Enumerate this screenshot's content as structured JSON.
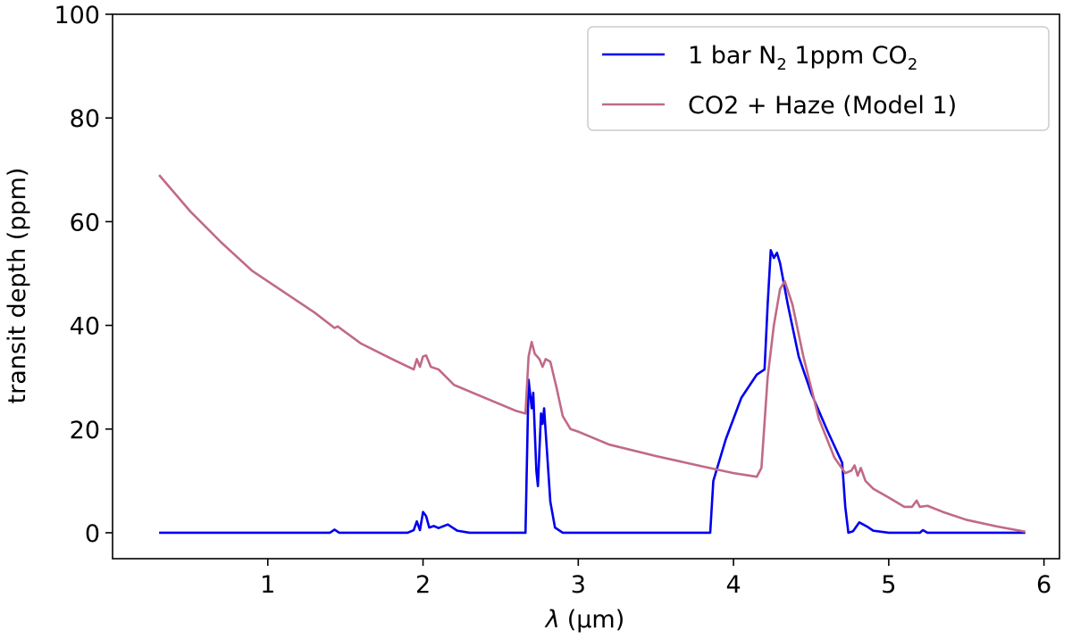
{
  "chart_data": {
    "type": "line",
    "xlabel_symbol": "λ",
    "xlabel_unit": "(μm)",
    "ylabel": "transit depth (ppm)",
    "xlim": [
      0.0,
      6.1
    ],
    "ylim": [
      -5,
      100
    ],
    "x_ticks": [
      1,
      2,
      3,
      4,
      5,
      6
    ],
    "y_ticks": [
      0,
      20,
      40,
      60,
      80,
      100
    ],
    "legend_position": "top-right",
    "series": [
      {
        "name_parts": [
          "1 bar N",
          "2",
          " 1ppm CO",
          "2"
        ],
        "color": "#0000ee",
        "points": [
          [
            0.3,
            0
          ],
          [
            1.4,
            0
          ],
          [
            1.43,
            0.6
          ],
          [
            1.46,
            0
          ],
          [
            1.9,
            0
          ],
          [
            1.94,
            0.5
          ],
          [
            1.96,
            2.2
          ],
          [
            1.98,
            0.5
          ],
          [
            2.0,
            4.0
          ],
          [
            2.02,
            3.2
          ],
          [
            2.04,
            1.0
          ],
          [
            2.07,
            1.3
          ],
          [
            2.1,
            0.9
          ],
          [
            2.16,
            1.6
          ],
          [
            2.22,
            0.4
          ],
          [
            2.3,
            0
          ],
          [
            2.66,
            0
          ],
          [
            2.68,
            29.5
          ],
          [
            2.7,
            24.0
          ],
          [
            2.71,
            27.0
          ],
          [
            2.73,
            12.0
          ],
          [
            2.74,
            9.0
          ],
          [
            2.76,
            23.0
          ],
          [
            2.77,
            21.0
          ],
          [
            2.78,
            24.0
          ],
          [
            2.8,
            15.0
          ],
          [
            2.82,
            6.0
          ],
          [
            2.85,
            1.0
          ],
          [
            2.9,
            0
          ],
          [
            3.85,
            0
          ],
          [
            3.87,
            10.0
          ],
          [
            3.95,
            18.0
          ],
          [
            4.05,
            26.0
          ],
          [
            4.15,
            30.5
          ],
          [
            4.2,
            31.5
          ],
          [
            4.22,
            44.0
          ],
          [
            4.24,
            54.5
          ],
          [
            4.26,
            53.0
          ],
          [
            4.28,
            54.0
          ],
          [
            4.3,
            52.0
          ],
          [
            4.35,
            44.0
          ],
          [
            4.42,
            34.0
          ],
          [
            4.5,
            27.0
          ],
          [
            4.6,
            20.0
          ],
          [
            4.7,
            13.5
          ],
          [
            4.72,
            5.0
          ],
          [
            4.74,
            0
          ],
          [
            4.77,
            0.3
          ],
          [
            4.81,
            2.0
          ],
          [
            4.86,
            1.2
          ],
          [
            4.9,
            0.4
          ],
          [
            5.0,
            0
          ],
          [
            5.2,
            0
          ],
          [
            5.22,
            0.5
          ],
          [
            5.25,
            0
          ],
          [
            5.88,
            0
          ]
        ]
      },
      {
        "name": "CO2 + Haze (Model 1)",
        "color": "#c06a86",
        "points": [
          [
            0.3,
            69.0
          ],
          [
            0.5,
            62.0
          ],
          [
            0.7,
            56.0
          ],
          [
            0.9,
            50.5
          ],
          [
            1.1,
            46.5
          ],
          [
            1.3,
            42.5
          ],
          [
            1.43,
            39.5
          ],
          [
            1.45,
            39.8
          ],
          [
            1.6,
            36.5
          ],
          [
            1.8,
            33.5
          ],
          [
            1.94,
            31.5
          ],
          [
            1.96,
            33.5
          ],
          [
            1.98,
            32.0
          ],
          [
            2.0,
            34.0
          ],
          [
            2.02,
            34.2
          ],
          [
            2.05,
            32.0
          ],
          [
            2.1,
            31.5
          ],
          [
            2.2,
            28.5
          ],
          [
            2.4,
            26.0
          ],
          [
            2.6,
            23.5
          ],
          [
            2.66,
            23.0
          ],
          [
            2.68,
            34.0
          ],
          [
            2.7,
            36.8
          ],
          [
            2.72,
            34.5
          ],
          [
            2.75,
            33.5
          ],
          [
            2.77,
            32.0
          ],
          [
            2.79,
            33.5
          ],
          [
            2.82,
            33.0
          ],
          [
            2.86,
            28.0
          ],
          [
            2.9,
            22.5
          ],
          [
            2.95,
            20.0
          ],
          [
            3.0,
            19.5
          ],
          [
            3.2,
            17.0
          ],
          [
            3.5,
            14.8
          ],
          [
            3.8,
            12.8
          ],
          [
            4.0,
            11.5
          ],
          [
            4.15,
            10.8
          ],
          [
            4.18,
            12.5
          ],
          [
            4.22,
            30.0
          ],
          [
            4.26,
            40.0
          ],
          [
            4.3,
            47.0
          ],
          [
            4.33,
            48.5
          ],
          [
            4.38,
            44.0
          ],
          [
            4.45,
            34.0
          ],
          [
            4.55,
            22.0
          ],
          [
            4.65,
            14.5
          ],
          [
            4.72,
            11.5
          ],
          [
            4.76,
            12.0
          ],
          [
            4.78,
            13.0
          ],
          [
            4.8,
            11.0
          ],
          [
            4.82,
            12.5
          ],
          [
            4.85,
            10.0
          ],
          [
            4.9,
            8.5
          ],
          [
            5.0,
            6.8
          ],
          [
            5.1,
            5.0
          ],
          [
            5.15,
            5.0
          ],
          [
            5.18,
            6.2
          ],
          [
            5.2,
            5.0
          ],
          [
            5.25,
            5.2
          ],
          [
            5.35,
            4.0
          ],
          [
            5.5,
            2.5
          ],
          [
            5.7,
            1.2
          ],
          [
            5.88,
            0.2
          ]
        ]
      }
    ]
  }
}
